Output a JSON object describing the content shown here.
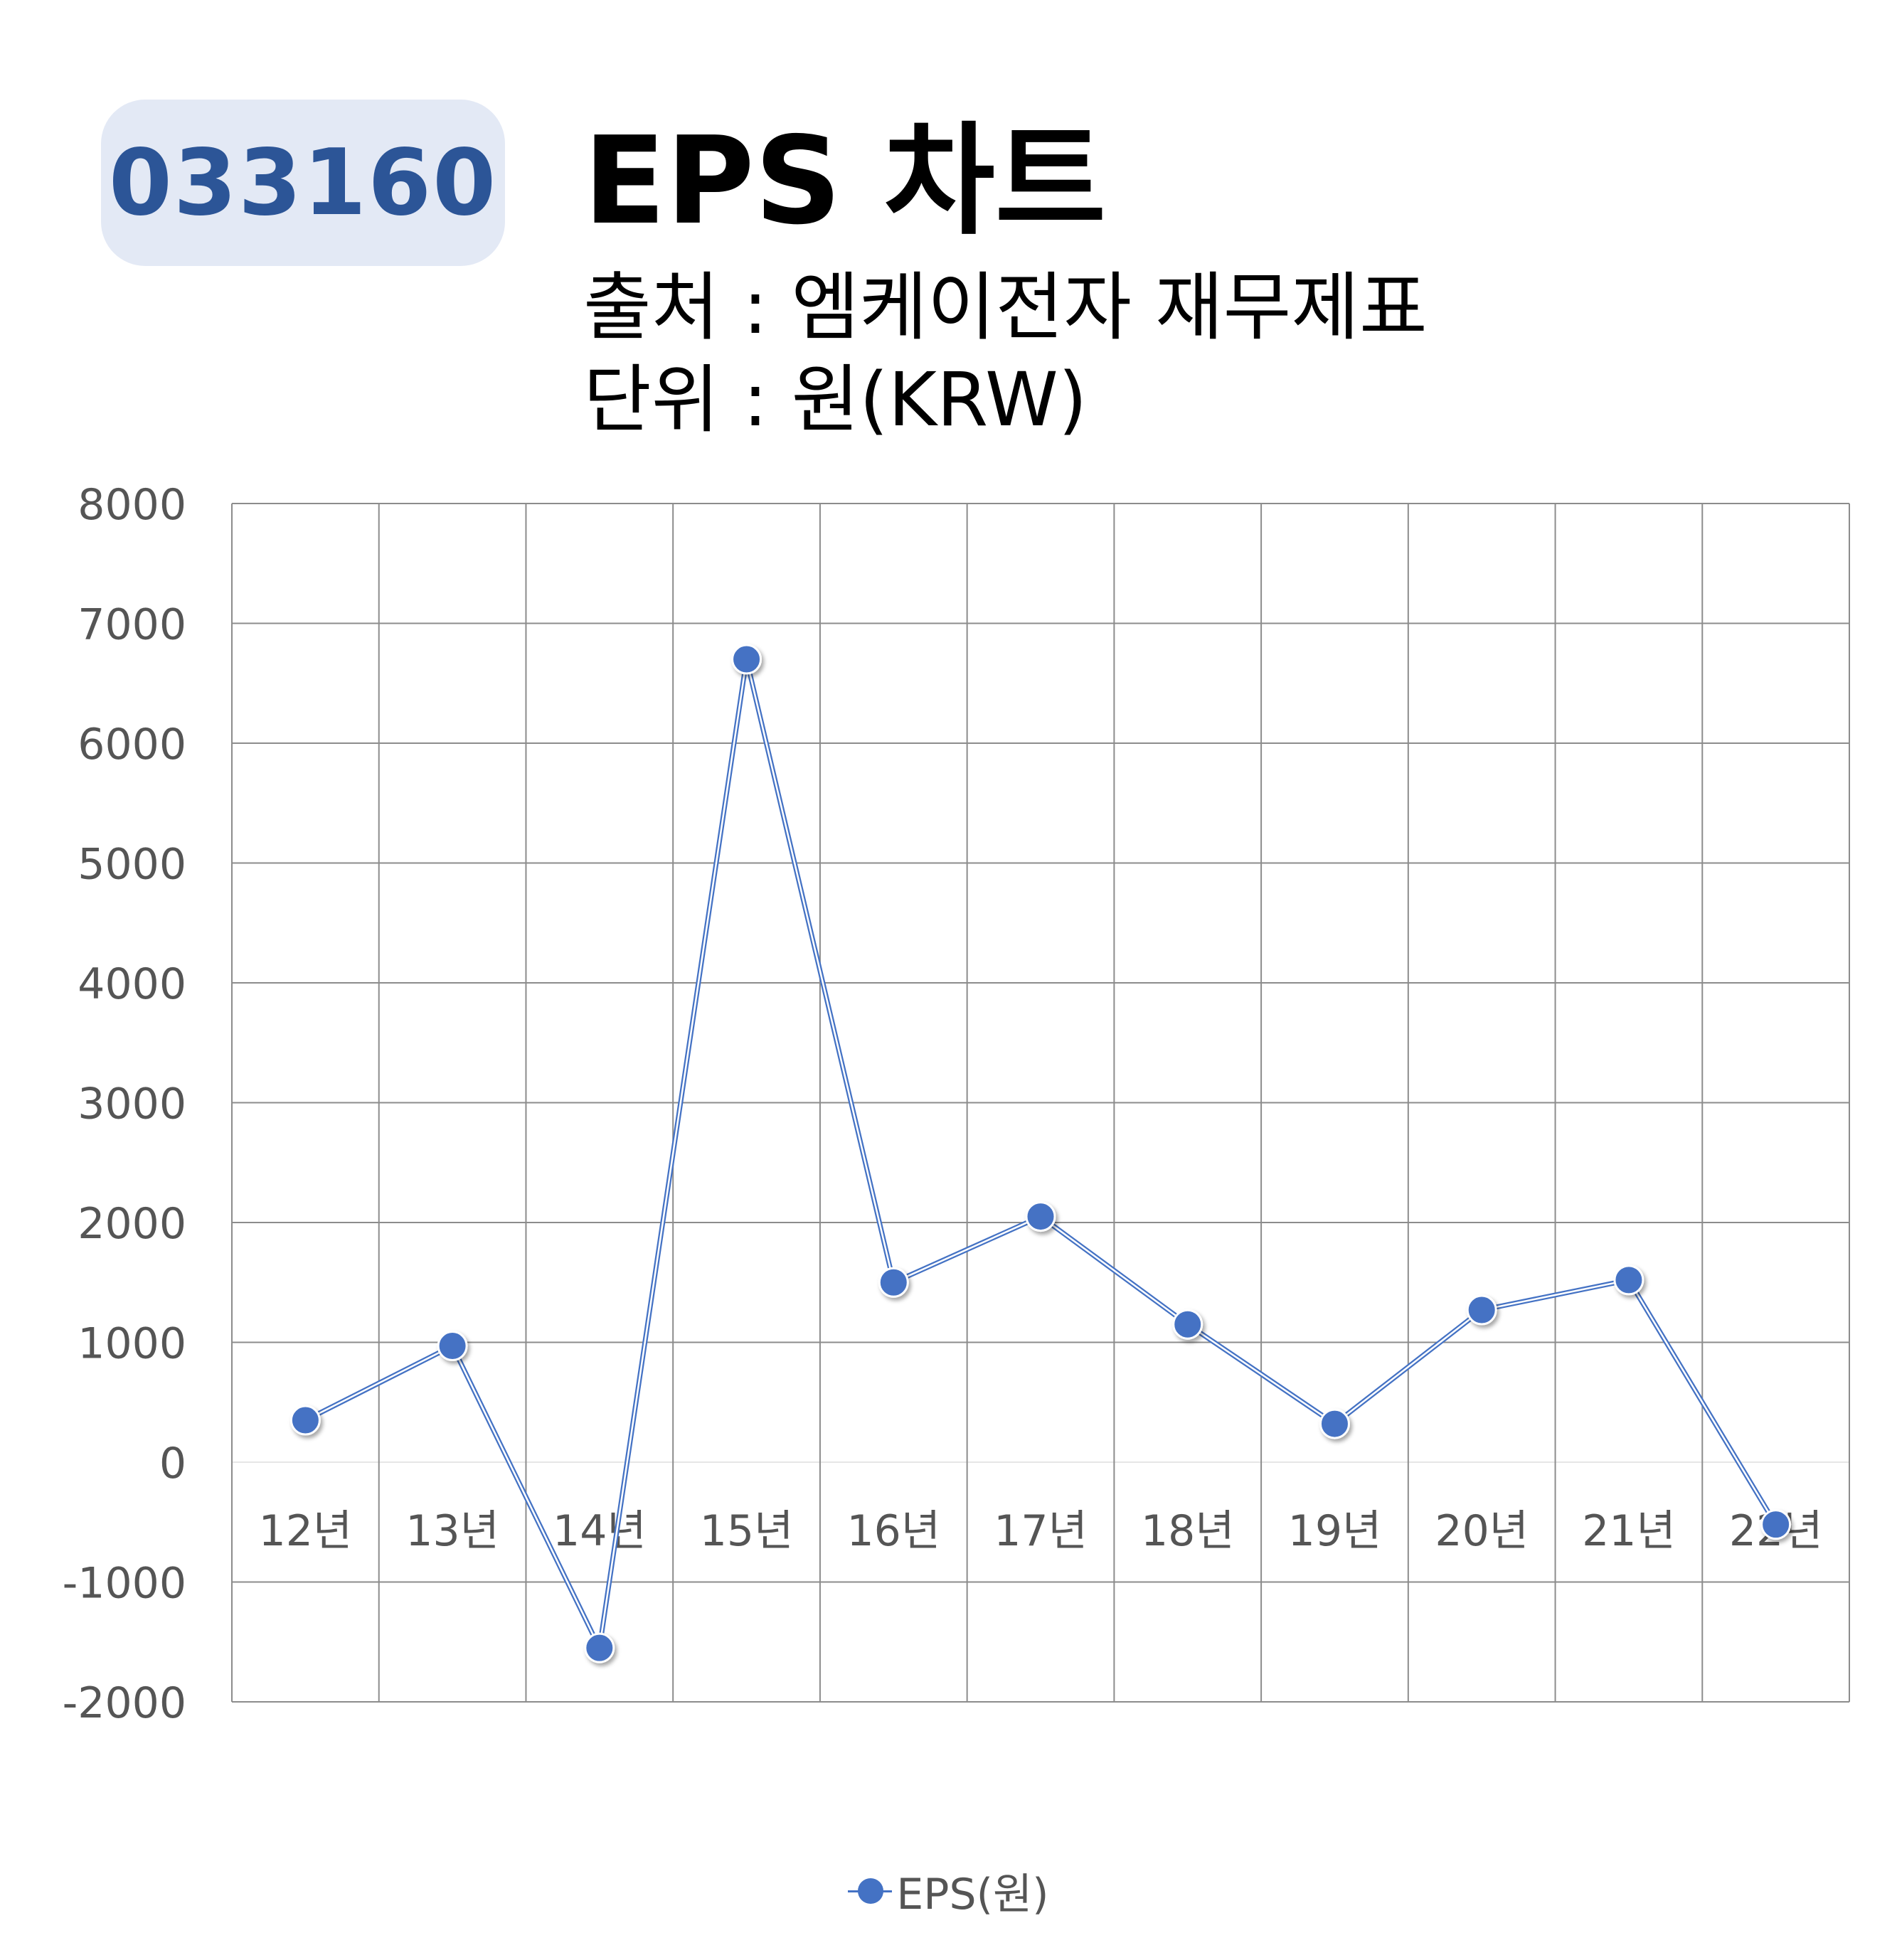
{
  "header": {
    "ticker": "033160",
    "title": "EPS 차트",
    "source": "출처 : 엠케이전자 재무제표",
    "unit": "단위 : 원(KRW)"
  },
  "colors": {
    "series": "#4472c4",
    "badge_bg": "#e3e9f5",
    "badge_text": "#2c5597",
    "grid": "#8c8c8c",
    "tick_text": "#555555"
  },
  "chart_data": {
    "type": "line",
    "categories": [
      "12년",
      "13년",
      "14년",
      "15년",
      "16년",
      "17년",
      "18년",
      "19년",
      "20년",
      "21년",
      "22년"
    ],
    "series": [
      {
        "name": "EPS(원)",
        "values": [
          350,
          970,
          -1550,
          6700,
          1500,
          2050,
          1150,
          320,
          1270,
          1520,
          -520
        ]
      }
    ],
    "ylim": [
      -2000,
      8000
    ],
    "yticks": [
      "8000",
      "7000",
      "6000",
      "5000",
      "4000",
      "3000",
      "2000",
      "1000",
      "0",
      "-1000",
      "-2000"
    ],
    "grid": true,
    "legend": "bottom",
    "xlabel": "",
    "ylabel": ""
  }
}
